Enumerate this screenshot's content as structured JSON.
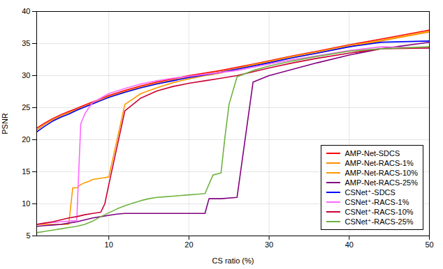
{
  "chart_data": {
    "type": "line",
    "xlabel": "CS ratio (%)",
    "ylabel": "PSNR",
    "xlim": [
      1,
      50
    ],
    "ylim": [
      5,
      40
    ],
    "xticks": [
      10,
      20,
      30,
      40,
      50
    ],
    "yticks": [
      5,
      10,
      15,
      20,
      25,
      30,
      35,
      40
    ],
    "grid": true,
    "legend": "lower right",
    "series": [
      {
        "name": "AMP-Net-SDCS",
        "color": "#ff0000",
        "x": [
          1,
          2,
          3,
          4,
          5,
          6,
          7,
          8,
          9,
          10,
          12,
          14,
          16,
          18,
          20,
          22,
          24,
          26,
          28,
          30,
          33,
          36,
          40,
          44,
          50
        ],
        "values": [
          21.8,
          22.6,
          23.3,
          23.9,
          24.4,
          24.9,
          25.4,
          25.9,
          26.4,
          26.9,
          27.7,
          28.4,
          29.0,
          29.5,
          30.0,
          30.4,
          30.8,
          31.3,
          31.8,
          32.3,
          33.1,
          33.8,
          34.8,
          35.7,
          37.1
        ]
      },
      {
        "name": "AMP-Net-RACS-1%",
        "color": "#ff8c00",
        "x": [
          1,
          2,
          3,
          4,
          5,
          6,
          7,
          8,
          9,
          10,
          12,
          14,
          16,
          18,
          20,
          22,
          24,
          26,
          28,
          30,
          33,
          36,
          40,
          44,
          50
        ],
        "values": [
          21.5,
          22.4,
          23.1,
          23.7,
          24.2,
          24.7,
          25.2,
          25.7,
          26.2,
          26.7,
          27.5,
          28.2,
          28.8,
          29.3,
          29.8,
          30.2,
          30.6,
          31.1,
          31.6,
          32.1,
          32.8,
          33.5,
          34.5,
          35.4,
          36.8
        ]
      },
      {
        "name": "AMP-Net-RACS-10%",
        "color": "#ff9900",
        "x": [
          1,
          2,
          3,
          4,
          5,
          5.5,
          6,
          6.5,
          7,
          7.5,
          8,
          9,
          10,
          12,
          14,
          16,
          18,
          20,
          22,
          24,
          26,
          28,
          30,
          33,
          36,
          40,
          44,
          50
        ],
        "values": [
          6.8,
          6.8,
          6.8,
          6.8,
          6.8,
          12.5,
          12.5,
          13.0,
          13.3,
          13.5,
          13.8,
          14.0,
          14.2,
          25.5,
          27.2,
          28.1,
          28.9,
          29.5,
          30.0,
          30.4,
          31.1,
          31.7,
          32.2,
          33.0,
          33.7,
          34.7,
          35.5,
          36.9
        ]
      },
      {
        "name": "AMP-Net-RACS-25%",
        "color": "#800080",
        "x": [
          1,
          2,
          3,
          4,
          5,
          6,
          7,
          8,
          9,
          10,
          11,
          12,
          13,
          14,
          15,
          16,
          17,
          18,
          19,
          20,
          21,
          22,
          22.5,
          23,
          24,
          26,
          28,
          30,
          33,
          36,
          40,
          44,
          50
        ],
        "values": [
          6.5,
          6.6,
          6.7,
          6.8,
          7.0,
          7.2,
          7.5,
          7.8,
          8.0,
          8.2,
          8.4,
          8.5,
          8.5,
          8.5,
          8.5,
          8.5,
          8.5,
          8.5,
          8.5,
          8.5,
          8.5,
          8.5,
          10.8,
          10.8,
          10.8,
          11.0,
          29.0,
          30.0,
          31.0,
          32.0,
          33.2,
          34.2,
          35.2
        ]
      },
      {
        "name": "CSNet⁺-SDCS",
        "color": "#0000ff",
        "x": [
          1,
          2,
          3,
          4,
          5,
          6,
          7,
          8,
          9,
          10,
          12,
          14,
          16,
          18,
          20,
          22,
          24,
          26,
          28,
          30,
          33,
          36,
          40,
          44,
          50
        ],
        "values": [
          21.2,
          22.1,
          22.9,
          23.5,
          24.0,
          24.6,
          25.1,
          25.6,
          26.1,
          26.6,
          27.4,
          28.1,
          28.7,
          29.2,
          29.7,
          30.1,
          30.5,
          31.0,
          31.5,
          32.0,
          32.8,
          33.5,
          34.5,
          35.2,
          35.4
        ]
      },
      {
        "name": "CSNet⁺-RACS-1%",
        "color": "#ff66ff",
        "x": [
          1,
          2,
          3,
          4,
          5,
          6,
          6.5,
          7,
          7.5,
          8,
          9,
          10,
          12,
          14,
          16,
          18,
          20,
          22,
          24,
          26,
          28,
          30,
          33,
          36,
          40,
          44,
          50
        ],
        "values": [
          6.8,
          7.0,
          7.1,
          7.2,
          7.3,
          7.4,
          22.5,
          24.0,
          25.0,
          25.8,
          26.5,
          27.2,
          28.0,
          28.7,
          29.2,
          29.6,
          29.9,
          30.2,
          30.5,
          30.8,
          31.3,
          31.8,
          32.5,
          33.1,
          33.9,
          34.5,
          34.3
        ]
      },
      {
        "name": "CSNet⁺-RACS-10%",
        "color": "#cc0033",
        "x": [
          1,
          2,
          3,
          4,
          5,
          6,
          7,
          8,
          9,
          9.5,
          10,
          12,
          14,
          16,
          18,
          20,
          22,
          24,
          26,
          28,
          30,
          33,
          36,
          40,
          44,
          50
        ],
        "values": [
          6.8,
          7.0,
          7.2,
          7.5,
          7.8,
          8.0,
          8.3,
          8.5,
          8.7,
          10.0,
          13.0,
          24.5,
          26.5,
          27.6,
          28.3,
          28.8,
          29.2,
          29.6,
          30.0,
          30.6,
          31.2,
          32.0,
          32.7,
          33.5,
          34.2,
          34.3
        ]
      },
      {
        "name": "CSNet⁺-RACS-25%",
        "color": "#6db33f",
        "x": [
          1,
          2,
          3,
          4,
          5,
          6,
          7,
          8,
          9,
          10,
          11,
          12,
          13,
          14,
          15,
          16,
          17,
          18,
          19,
          20,
          21,
          22,
          23,
          24,
          24.5,
          25,
          26,
          28,
          30,
          33,
          36,
          40,
          44,
          50
        ],
        "values": [
          5.5,
          5.7,
          5.9,
          6.1,
          6.3,
          6.5,
          6.8,
          7.3,
          8.0,
          8.6,
          9.2,
          9.7,
          10.1,
          10.5,
          10.8,
          11.0,
          11.1,
          11.2,
          11.3,
          11.4,
          11.5,
          11.6,
          14.5,
          14.8,
          20.5,
          25.5,
          29.8,
          30.8,
          31.5,
          32.3,
          33.0,
          33.8,
          34.2,
          34.5
        ]
      }
    ]
  }
}
